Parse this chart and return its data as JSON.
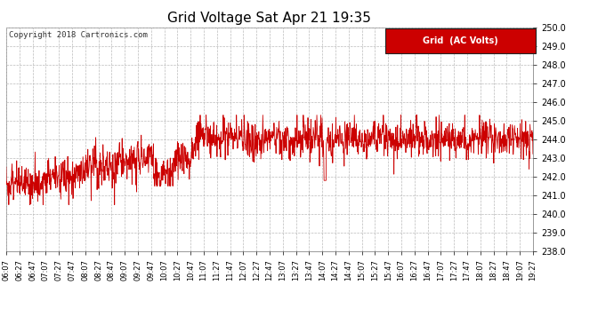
{
  "title": "Grid Voltage Sat Apr 21 19:35",
  "copyright": "Copyright 2018 Cartronics.com",
  "legend_label": "Grid  (AC Volts)",
  "ylim": [
    238.0,
    250.0
  ],
  "yticks": [
    238.0,
    239.0,
    240.0,
    241.0,
    242.0,
    243.0,
    244.0,
    245.0,
    246.0,
    247.0,
    248.0,
    249.0,
    250.0
  ],
  "line_color": "#cc0000",
  "bg_color": "#ffffff",
  "plot_bg_color": "#ffffff",
  "grid_color": "#bbbbbb",
  "legend_bg": "#cc0000",
  "legend_fg": "#ffffff",
  "tick_labels": [
    "06:07",
    "06:27",
    "06:47",
    "07:07",
    "07:27",
    "07:47",
    "08:07",
    "08:27",
    "08:47",
    "09:07",
    "09:27",
    "09:47",
    "10:07",
    "10:27",
    "10:47",
    "11:07",
    "11:27",
    "11:47",
    "12:07",
    "12:27",
    "12:47",
    "13:07",
    "13:27",
    "13:47",
    "14:07",
    "14:27",
    "14:47",
    "15:07",
    "15:27",
    "15:47",
    "16:07",
    "16:27",
    "16:47",
    "17:07",
    "17:27",
    "17:47",
    "18:07",
    "18:27",
    "18:47",
    "19:07",
    "19:27"
  ],
  "title_fontsize": 11,
  "ylabel_fontsize": 7,
  "xlabel_fontsize": 6,
  "copyright_fontsize": 6.5,
  "legend_fontsize": 7
}
